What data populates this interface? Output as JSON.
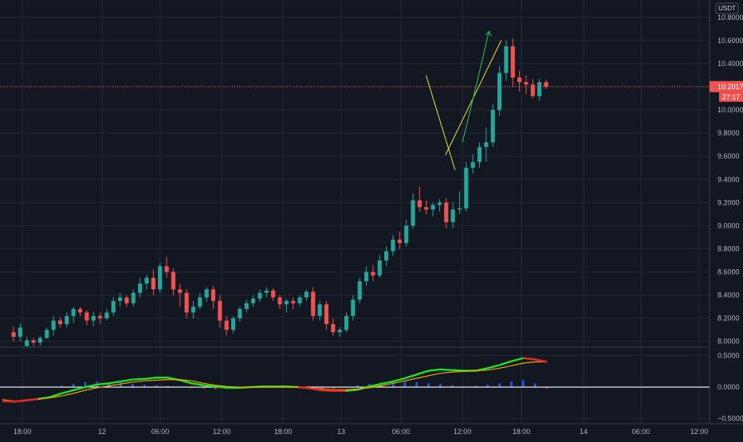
{
  "chart_data": [
    {
      "type": "candlestick",
      "title": "",
      "currency": "USDT",
      "ylim": [
        7.95,
        10.95
      ],
      "y_ticks": [
        "10.8000",
        "10.6000",
        "10.4000",
        "10.2000",
        "10.0000",
        "9.8000",
        "9.6000",
        "9.4000",
        "9.2000",
        "9.0000",
        "8.8000",
        "8.6000",
        "8.4000",
        "8.2000",
        "8.0000"
      ],
      "y_tick_values": [
        10.8,
        10.6,
        10.4,
        10.2,
        10.0,
        9.8,
        9.6,
        9.4,
        9.2,
        9.0,
        8.8,
        8.6,
        8.4,
        8.2,
        8.0
      ],
      "x_ticks": [
        "18:00",
        "12",
        "06:00",
        "12:00",
        "18:00",
        "13",
        "06:00",
        "12:00",
        "18:00",
        "14",
        "06:00",
        "12:00"
      ],
      "last_price": "10.2017",
      "last_price_value": 10.2017,
      "countdown": "27:17",
      "colors": {
        "up": "#26a69a",
        "down": "#ef5350",
        "background": "#131722",
        "grid": "#252a36",
        "pattern": "#e8e337",
        "arrow": "#22c55e"
      },
      "candles": [
        [
          8.08,
          8.13,
          8.0,
          8.04
        ],
        [
          8.04,
          8.16,
          8.0,
          8.12
        ],
        [
          7.96,
          8.04,
          7.95,
          8.01
        ],
        [
          8.01,
          8.03,
          7.96,
          7.99
        ],
        [
          7.99,
          8.05,
          7.96,
          8.03
        ],
        [
          8.03,
          8.12,
          8.02,
          8.1
        ],
        [
          8.1,
          8.22,
          8.05,
          8.18
        ],
        [
          8.18,
          8.21,
          8.12,
          8.15
        ],
        [
          8.15,
          8.25,
          8.12,
          8.22
        ],
        [
          8.22,
          8.3,
          8.16,
          8.28
        ],
        [
          8.28,
          8.3,
          8.22,
          8.25
        ],
        [
          8.25,
          8.27,
          8.14,
          8.18
        ],
        [
          8.18,
          8.26,
          8.13,
          8.22
        ],
        [
          8.22,
          8.25,
          8.15,
          8.2
        ],
        [
          8.2,
          8.28,
          8.18,
          8.25
        ],
        [
          8.25,
          8.38,
          8.22,
          8.35
        ],
        [
          8.35,
          8.42,
          8.3,
          8.38
        ],
        [
          8.38,
          8.4,
          8.3,
          8.33
        ],
        [
          8.33,
          8.45,
          8.3,
          8.42
        ],
        [
          8.42,
          8.55,
          8.38,
          8.5
        ],
        [
          8.5,
          8.58,
          8.45,
          8.55
        ],
        [
          8.55,
          8.62,
          8.4,
          8.45
        ],
        [
          8.45,
          8.68,
          8.42,
          8.65
        ],
        [
          8.65,
          8.73,
          8.55,
          8.6
        ],
        [
          8.6,
          8.63,
          8.4,
          8.45
        ],
        [
          8.45,
          8.5,
          8.3,
          8.42
        ],
        [
          8.42,
          8.45,
          8.2,
          8.25
        ],
        [
          8.25,
          8.35,
          8.2,
          8.3
        ],
        [
          8.3,
          8.42,
          8.28,
          8.38
        ],
        [
          8.38,
          8.47,
          8.34,
          8.45
        ],
        [
          8.45,
          8.48,
          8.28,
          8.35
        ],
        [
          8.35,
          8.4,
          8.12,
          8.18
        ],
        [
          8.18,
          8.22,
          8.05,
          8.1
        ],
        [
          8.1,
          8.22,
          8.07,
          8.2
        ],
        [
          8.2,
          8.3,
          8.17,
          8.28
        ],
        [
          8.28,
          8.36,
          8.25,
          8.33
        ],
        [
          8.33,
          8.4,
          8.3,
          8.37
        ],
        [
          8.37,
          8.45,
          8.34,
          8.42
        ],
        [
          8.42,
          8.47,
          8.38,
          8.44
        ],
        [
          8.44,
          8.46,
          8.35,
          8.38
        ],
        [
          8.38,
          8.4,
          8.28,
          8.32
        ],
        [
          8.32,
          8.37,
          8.25,
          8.35
        ],
        [
          8.35,
          8.38,
          8.28,
          8.33
        ],
        [
          8.33,
          8.4,
          8.3,
          8.38
        ],
        [
          8.38,
          8.45,
          8.35,
          8.43
        ],
        [
          8.43,
          8.47,
          8.18,
          8.22
        ],
        [
          8.22,
          8.35,
          8.18,
          8.32
        ],
        [
          8.32,
          8.35,
          8.1,
          8.15
        ],
        [
          8.15,
          8.2,
          8.05,
          8.08
        ],
        [
          8.08,
          8.12,
          8.04,
          8.1
        ],
        [
          8.1,
          8.25,
          8.08,
          8.22
        ],
        [
          8.22,
          8.4,
          8.18,
          8.36
        ],
        [
          8.36,
          8.55,
          8.33,
          8.52
        ],
        [
          8.52,
          8.65,
          8.48,
          8.6
        ],
        [
          8.6,
          8.66,
          8.52,
          8.57
        ],
        [
          8.57,
          8.75,
          8.55,
          8.7
        ],
        [
          8.7,
          8.82,
          8.65,
          8.78
        ],
        [
          8.78,
          8.92,
          8.74,
          8.88
        ],
        [
          8.88,
          8.95,
          8.8,
          8.85
        ],
        [
          8.85,
          9.05,
          8.82,
          9.0
        ],
        [
          9.0,
          9.28,
          8.97,
          9.22
        ],
        [
          9.22,
          9.34,
          9.12,
          9.16
        ],
        [
          9.16,
          9.22,
          9.1,
          9.14
        ],
        [
          9.14,
          9.2,
          9.08,
          9.18
        ],
        [
          9.18,
          9.23,
          9.12,
          9.2
        ],
        [
          9.2,
          9.24,
          8.98,
          9.03
        ],
        [
          9.03,
          9.2,
          8.98,
          9.14
        ],
        [
          9.14,
          9.3,
          9.1,
          9.15
        ],
        [
          9.15,
          9.55,
          9.12,
          9.5
        ],
        [
          9.5,
          9.62,
          9.45,
          9.55
        ],
        [
          9.55,
          9.72,
          9.5,
          9.68
        ],
        [
          9.68,
          9.85,
          9.55,
          9.72
        ],
        [
          9.72,
          10.05,
          9.68,
          10.0
        ],
        [
          10.0,
          10.38,
          9.95,
          10.32
        ],
        [
          10.32,
          10.6,
          10.25,
          10.55
        ],
        [
          10.55,
          10.62,
          10.2,
          10.28
        ],
        [
          10.28,
          10.34,
          10.16,
          10.24
        ],
        [
          10.24,
          10.3,
          10.14,
          10.22
        ],
        [
          10.22,
          10.27,
          10.1,
          10.12
        ],
        [
          10.12,
          10.27,
          10.08,
          10.24
        ],
        [
          10.24,
          10.26,
          10.18,
          10.2
        ]
      ],
      "pattern_channel": {
        "upper": [
          [
            10.66,
            10.6
          ],
          [
            10.43,
            9.61
          ]
        ],
        "lower": [
          [
            10.35,
            10.3
          ],
          [
            10.47,
            9.48
          ]
        ],
        "arrow": [
          [
            10.5,
            9.72
          ],
          [
            10.61,
            10.68
          ]
        ]
      }
    },
    {
      "type": "line",
      "title": "",
      "ylim": [
        -0.58,
        0.62
      ],
      "y_ticks": [
        "0.5000",
        "0.0000",
        "−0.5000"
      ],
      "y_tick_values": [
        0.5,
        0.0,
        -0.5
      ],
      "series": [
        {
          "color": "#22e322",
          "values": [
            -0.22,
            -0.23,
            -0.21,
            -0.19,
            -0.16,
            -0.1,
            -0.05,
            0.0,
            0.04,
            0.06,
            0.09,
            0.12,
            0.13,
            0.15,
            0.15,
            0.11,
            0.06,
            0.03,
            0.01,
            -0.01,
            -0.01,
            0.0,
            0.01,
            0.01,
            0.01,
            0.0,
            -0.02,
            -0.05,
            -0.06,
            -0.06,
            -0.04,
            0.01,
            0.05,
            0.09,
            0.14,
            0.2,
            0.26,
            0.28,
            0.27,
            0.26,
            0.26,
            0.3,
            0.35,
            0.41,
            0.46,
            0.44,
            0.4
          ]
        },
        {
          "color": "#f0a500",
          "values": [
            -0.2,
            -0.22,
            -0.21,
            -0.19,
            -0.17,
            -0.14,
            -0.1,
            -0.05,
            -0.01,
            0.02,
            0.05,
            0.08,
            0.1,
            0.11,
            0.12,
            0.12,
            0.1,
            0.06,
            0.03,
            0.01,
            0.0,
            0.0,
            0.0,
            0.0,
            0.0,
            0.0,
            -0.01,
            -0.03,
            -0.04,
            -0.04,
            -0.03,
            -0.01,
            0.02,
            0.06,
            0.1,
            0.14,
            0.18,
            0.22,
            0.24,
            0.25,
            0.26,
            0.27,
            0.3,
            0.34,
            0.38,
            0.4,
            0.4
          ]
        }
      ],
      "histogram": [
        0,
        0,
        0,
        0,
        0,
        0.02,
        0.05,
        0.08,
        0.09,
        0.08,
        0.07,
        0.05,
        0.04,
        0.03,
        0.02,
        0.01,
        -0.01,
        -0.02,
        -0.03,
        -0.02,
        -0.01,
        0.01,
        0.02,
        0.01,
        0.01,
        0,
        -0.01,
        -0.02,
        -0.02,
        0.01,
        0.03,
        0.05,
        0.07,
        0.08,
        0.09,
        0.08,
        0.06,
        0.05,
        0.03,
        0.01,
        0.02,
        0.04,
        0.06,
        0.09,
        0.11,
        0.06,
        -0.02
      ]
    }
  ]
}
